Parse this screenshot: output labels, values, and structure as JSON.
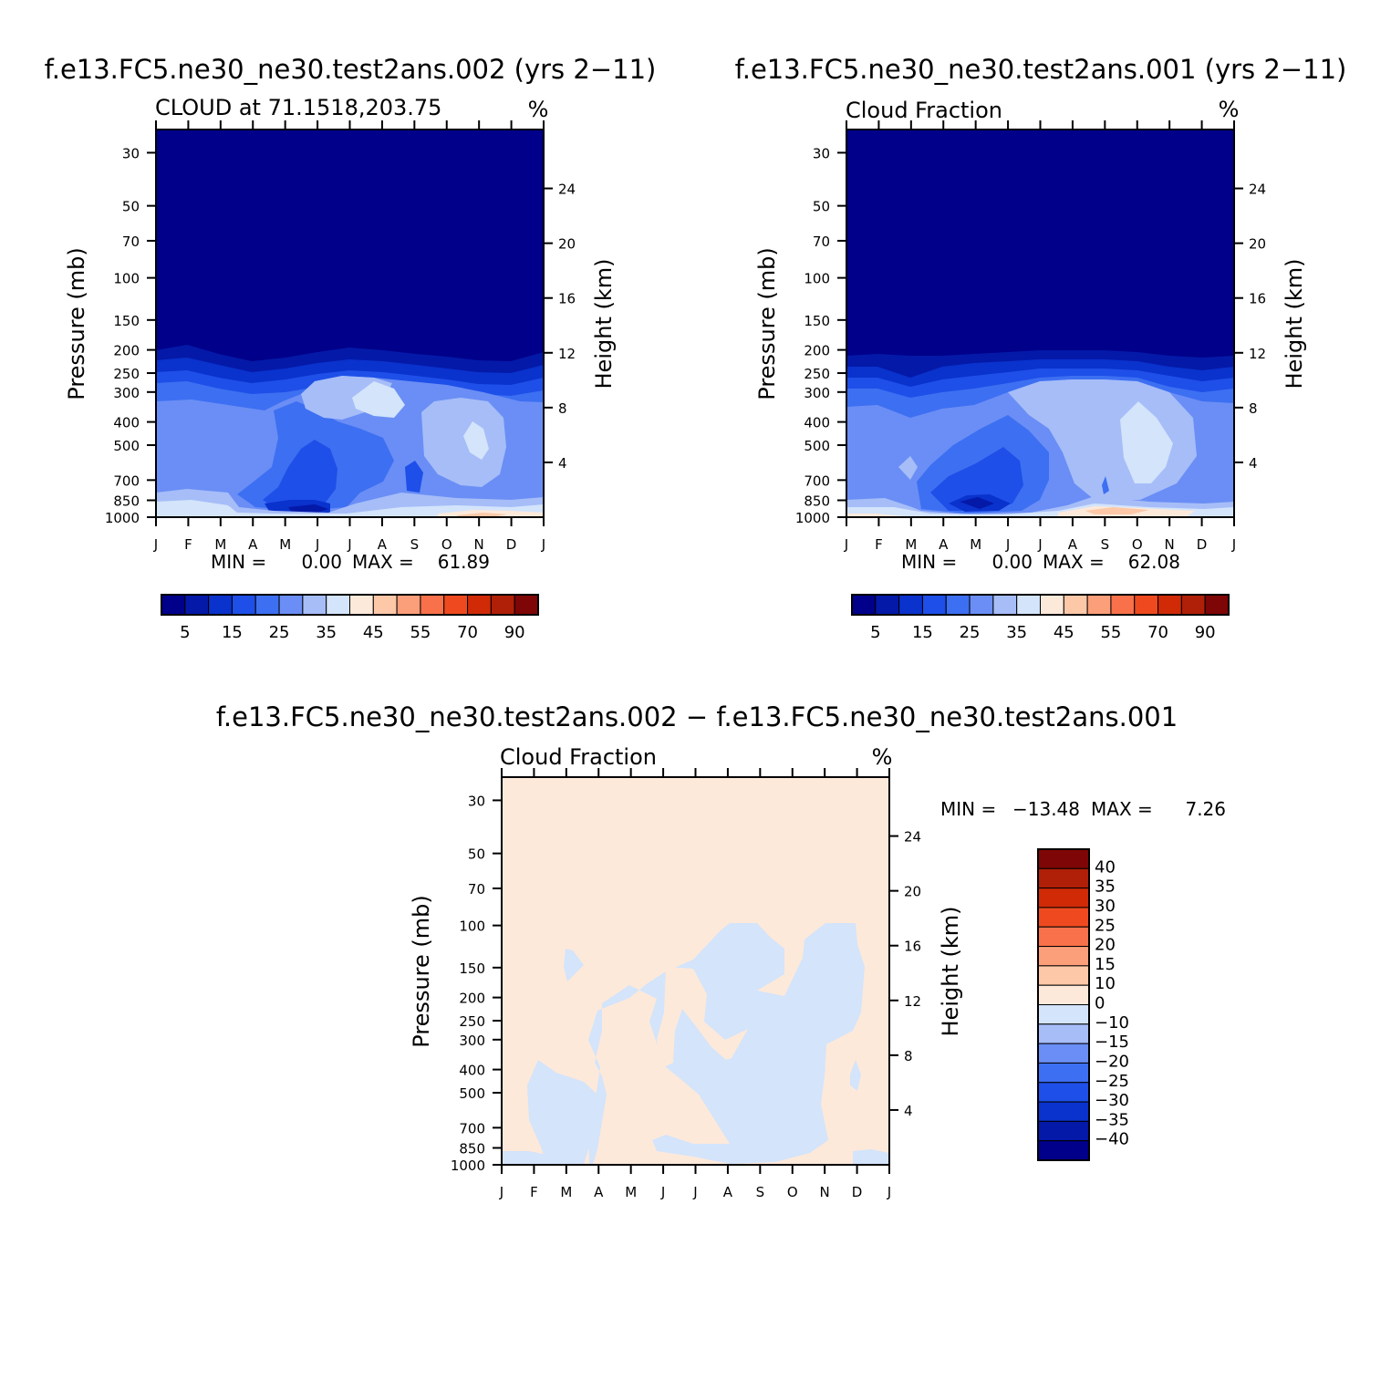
{
  "chart_data": [
    {
      "type": "contour",
      "title": "f.e13.FC5.ne30_ne30.test2ans.002 (yrs 2−11)",
      "subtitle_left": "CLOUD at 71.1518,203.75",
      "units": "%",
      "ylabel": "Pressure (mb)",
      "ylabel_right": "Height (km)",
      "months": [
        "J",
        "F",
        "M",
        "A",
        "M",
        "J",
        "J",
        "A",
        "S",
        "O",
        "N",
        "D",
        "J"
      ],
      "pressure_ticks": [
        "30",
        "50",
        "70",
        "100",
        "150",
        "200",
        "250",
        "300",
        "400",
        "500",
        "700",
        "850",
        "1000"
      ],
      "height_ticks": [
        "24",
        "20",
        "16",
        "12",
        "8",
        "4"
      ],
      "stats": {
        "min_label": "MIN =",
        "min": "0.00",
        "max_label": "MAX =",
        "max": "61.89"
      },
      "colorbar": {
        "colors": [
          "#00008a",
          "#0419a8",
          "#0a32cc",
          "#1e4fe8",
          "#3d6ff2",
          "#6a8ef5",
          "#a6bdf8",
          "#d3e4fb",
          "#fde9da",
          "#fcc8a8",
          "#fb9e7a",
          "#f8714a",
          "#ef4a1f",
          "#d02a07",
          "#b01f08",
          "#7e0606"
        ],
        "labels": [
          "5",
          "15",
          "25",
          "35",
          "45",
          "55",
          "70",
          "90"
        ]
      }
    },
    {
      "type": "contour",
      "title": "f.e13.FC5.ne30_ne30.test2ans.001 (yrs 2−11)",
      "subtitle_left": "Cloud Fraction",
      "units": "%",
      "ylabel": "Pressure (mb)",
      "ylabel_right": "Height (km)",
      "months": [
        "J",
        "F",
        "M",
        "A",
        "M",
        "J",
        "J",
        "A",
        "S",
        "O",
        "N",
        "D",
        "J"
      ],
      "pressure_ticks": [
        "30",
        "50",
        "70",
        "100",
        "150",
        "200",
        "250",
        "300",
        "400",
        "500",
        "700",
        "850",
        "1000"
      ],
      "height_ticks": [
        "24",
        "20",
        "16",
        "12",
        "8",
        "4"
      ],
      "stats": {
        "min_label": "MIN =",
        "min": "0.00",
        "max_label": "MAX =",
        "max": "62.08"
      },
      "colorbar": {
        "colors": [
          "#00008a",
          "#0419a8",
          "#0a32cc",
          "#1e4fe8",
          "#3d6ff2",
          "#6a8ef5",
          "#a6bdf8",
          "#d3e4fb",
          "#fde9da",
          "#fcc8a8",
          "#fb9e7a",
          "#f8714a",
          "#ef4a1f",
          "#d02a07",
          "#b01f08",
          "#7e0606"
        ],
        "labels": [
          "5",
          "15",
          "25",
          "35",
          "45",
          "55",
          "70",
          "90"
        ]
      }
    },
    {
      "type": "contour",
      "title": "f.e13.FC5.ne30_ne30.test2ans.002 − f.e13.FC5.ne30_ne30.test2ans.001",
      "subtitle_left": "Cloud Fraction",
      "units": "%",
      "ylabel": "Pressure (mb)",
      "ylabel_right": "Height (km)",
      "months": [
        "J",
        "F",
        "M",
        "A",
        "M",
        "J",
        "J",
        "A",
        "S",
        "O",
        "N",
        "D",
        "J"
      ],
      "pressure_ticks": [
        "30",
        "50",
        "70",
        "100",
        "150",
        "200",
        "250",
        "300",
        "400",
        "500",
        "700",
        "850",
        "1000"
      ],
      "height_ticks": [
        "24",
        "20",
        "16",
        "12",
        "8",
        "4"
      ],
      "stats": {
        "min_label": "MIN =",
        "min": "−13.48",
        "max_label": "MAX =",
        "max": "7.26"
      },
      "colorbar": {
        "colors": [
          "#7e0606",
          "#b01f08",
          "#d02a07",
          "#ef4a1f",
          "#f8714a",
          "#fb9e7a",
          "#fcc8a8",
          "#fde9da",
          "#d3e4fb",
          "#a6bdf8",
          "#6a8ef5",
          "#3d6ff2",
          "#1e4fe8",
          "#0a32cc",
          "#0419a8",
          "#00008a"
        ],
        "labels": [
          "40",
          "35",
          "30",
          "25",
          "20",
          "15",
          "10",
          "0",
          "−10",
          "−15",
          "−20",
          "−25",
          "−30",
          "−35",
          "−40"
        ]
      }
    }
  ]
}
